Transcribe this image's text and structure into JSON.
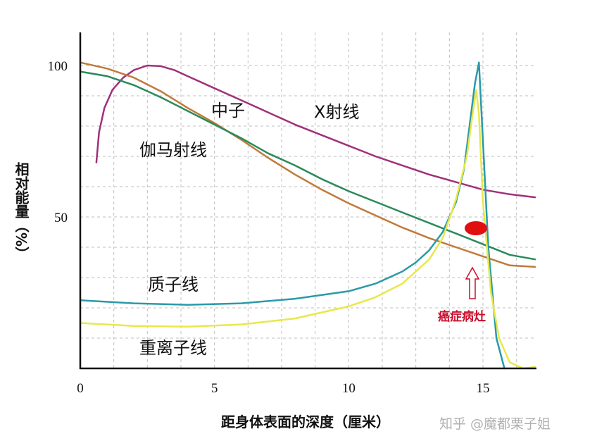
{
  "chart_data": {
    "type": "line",
    "title": "",
    "xlabel": "距身体表面的深度（厘米）",
    "ylabel": "相对能量（%）",
    "xlim": [
      0,
      17
    ],
    "ylim": [
      0,
      110
    ],
    "xticks": [
      0,
      5,
      10,
      15
    ],
    "yticks": [
      50,
      100
    ],
    "grid": true,
    "series": [
      {
        "name": "X射线",
        "color": "#a0307a",
        "x": [
          0.6,
          0.7,
          0.9,
          1.2,
          1.6,
          2.0,
          2.5,
          3.0,
          3.5,
          4.0,
          5.0,
          6.0,
          7.0,
          8.0,
          9.0,
          10.0,
          11.0,
          12.0,
          13.0,
          14.0,
          15.0,
          16.0,
          17.0
        ],
        "y": [
          68,
          78,
          86,
          92,
          96,
          98.5,
          100,
          99.8,
          98.5,
          96.5,
          92.5,
          88.5,
          84.5,
          80.5,
          77,
          73.5,
          70,
          67,
          64,
          61.5,
          59,
          57.5,
          56.5
        ]
      },
      {
        "name": "伽马射线",
        "color": "#c07a3a",
        "x": [
          0,
          1,
          2,
          3,
          4,
          5,
          6,
          7,
          8,
          9,
          10,
          11,
          12,
          13,
          14,
          15,
          16,
          17
        ],
        "y": [
          101,
          99,
          96,
          91.5,
          86,
          81,
          75.5,
          69.5,
          64,
          59,
          54.5,
          50.5,
          46.5,
          43,
          40,
          37,
          34,
          33.5
        ]
      },
      {
        "name": "中子",
        "color": "#2a8a5a",
        "x": [
          0,
          1,
          2,
          3,
          4,
          5,
          6,
          7,
          8,
          9,
          10,
          11,
          12,
          13,
          14,
          15,
          16,
          17
        ],
        "y": [
          98,
          96.5,
          93.5,
          89.5,
          85,
          80.5,
          76,
          71,
          67,
          62.5,
          58.5,
          55,
          51.5,
          48,
          44.5,
          41,
          37.5,
          36
        ]
      },
      {
        "name": "质子线",
        "color": "#2a9aa8",
        "x": [
          0,
          2,
          4,
          6,
          8,
          10,
          11,
          12,
          12.5,
          13,
          13.5,
          14,
          14.3,
          14.5,
          14.7,
          14.85,
          15.0,
          15.2,
          15.5,
          15.8
        ],
        "y": [
          22.5,
          21.5,
          21,
          21.5,
          23,
          25.5,
          28,
          32,
          35,
          39,
          45,
          55,
          66,
          80,
          94,
          101,
          75,
          40,
          10,
          0
        ]
      },
      {
        "name": "重离子线",
        "color": "#e8e84a",
        "x": [
          0,
          2,
          4,
          6,
          8,
          10,
          11,
          12,
          13,
          13.5,
          14,
          14.4,
          14.6,
          14.75,
          14.85,
          15.0,
          15.3,
          15.6,
          16.0,
          16.5,
          17.0
        ],
        "y": [
          15,
          14,
          13.8,
          14.5,
          16.5,
          20.5,
          23.5,
          28,
          36,
          43,
          56,
          70,
          83,
          92,
          84,
          55,
          25,
          10,
          2,
          0,
          0.5
        ]
      }
    ],
    "annotations": [
      {
        "text": "癌症病灶",
        "x": 14.6,
        "y": 46
      }
    ]
  },
  "labels": {
    "xray": "X射线",
    "gamma": "伽马射线",
    "neutron": "中子",
    "proton": "质子线",
    "heavy_ion": "重离子线",
    "tumor": "癌症病灶"
  },
  "watermark": "知乎 @魔都栗子姐"
}
